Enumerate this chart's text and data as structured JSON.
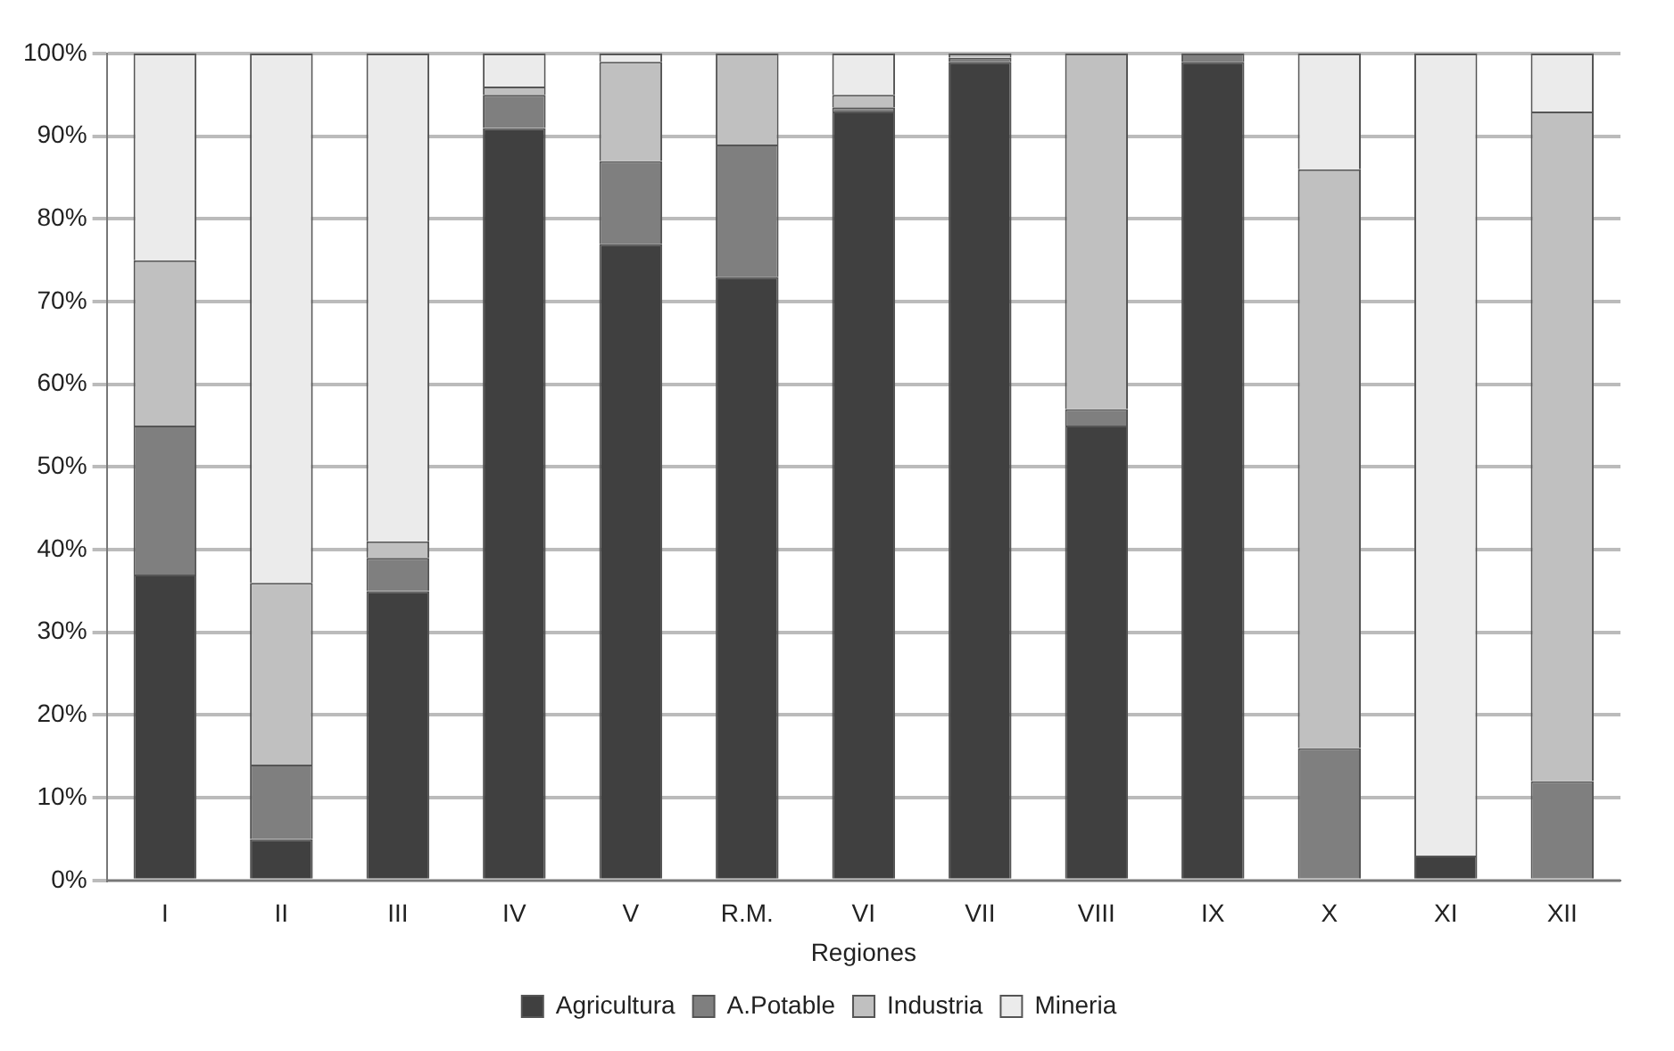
{
  "chart_data": {
    "type": "bar",
    "stacked": true,
    "xlabel": "Regiones",
    "categories": [
      "I",
      "II",
      "III",
      "IV",
      "V",
      "R.M.",
      "VI",
      "VII",
      "VIII",
      "IX",
      "X",
      "XI",
      "XII"
    ],
    "series": [
      {
        "name": "Agricultura",
        "color": "#404040",
        "values": [
          37,
          5,
          35,
          91,
          77,
          73,
          93,
          99,
          55,
          99,
          0,
          3,
          0
        ]
      },
      {
        "name": "A.Potable",
        "color": "#7f7f7f",
        "values": [
          18,
          9,
          4,
          4,
          10,
          16,
          0.5,
          0.5,
          2,
          1,
          16,
          0,
          12
        ]
      },
      {
        "name": "Industria",
        "color": "#c0c0c0",
        "values": [
          20,
          22,
          2,
          1,
          12,
          11,
          1.5,
          0.5,
          43,
          0,
          70,
          0,
          81
        ]
      },
      {
        "name": "Mineria",
        "color": "#ebebeb",
        "values": [
          25,
          64,
          59,
          4,
          1,
          0,
          5,
          0,
          0,
          0,
          14,
          97,
          7
        ]
      }
    ],
    "ylim": [
      0,
      100
    ],
    "yticks": [
      {
        "value": 0,
        "label": "0%"
      },
      {
        "value": 10,
        "label": "10%"
      },
      {
        "value": 20,
        "label": "20%"
      },
      {
        "value": 30,
        "label": "30%"
      },
      {
        "value": 40,
        "label": "40%"
      },
      {
        "value": 50,
        "label": "50%"
      },
      {
        "value": 60,
        "label": "60%"
      },
      {
        "value": 70,
        "label": "70%"
      },
      {
        "value": 80,
        "label": "80%"
      },
      {
        "value": 90,
        "label": "90%"
      },
      {
        "value": 100,
        "label": "100%"
      }
    ],
    "grid": "y",
    "legend": "bottom"
  }
}
